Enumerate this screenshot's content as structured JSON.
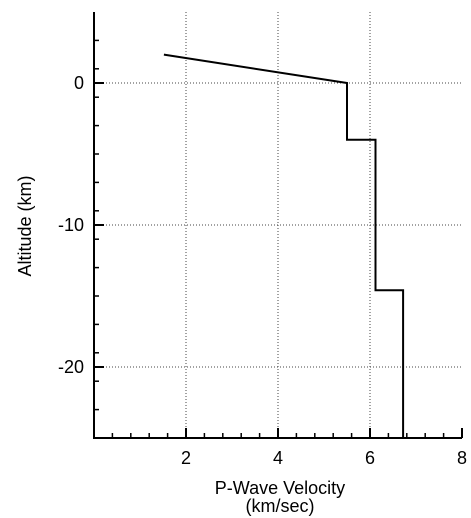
{
  "chart_data": {
    "type": "line",
    "title": "",
    "xlabel_line1": "P-Wave Velocity",
    "xlabel_line2": "(km/sec)",
    "ylabel": "Altitude (km)",
    "xlim": [
      0,
      8
    ],
    "ylim": [
      -25,
      5
    ],
    "x_major_ticks": [
      2,
      4,
      6,
      8
    ],
    "x_minor_step": 0.4,
    "y_major_ticks": [
      0,
      -10,
      -20
    ],
    "y_minor_step": 2,
    "grid": "dotted, at labeled major ticks",
    "line_color": "#000000",
    "series": [
      {
        "points": [
          [
            1.52,
            2.0
          ],
          [
            5.5,
            0.0
          ],
          [
            5.5,
            -4.0
          ],
          [
            6.12,
            -4.0
          ],
          [
            6.12,
            -14.6
          ],
          [
            6.72,
            -14.6
          ],
          [
            6.72,
            -25.0
          ]
        ]
      }
    ]
  }
}
